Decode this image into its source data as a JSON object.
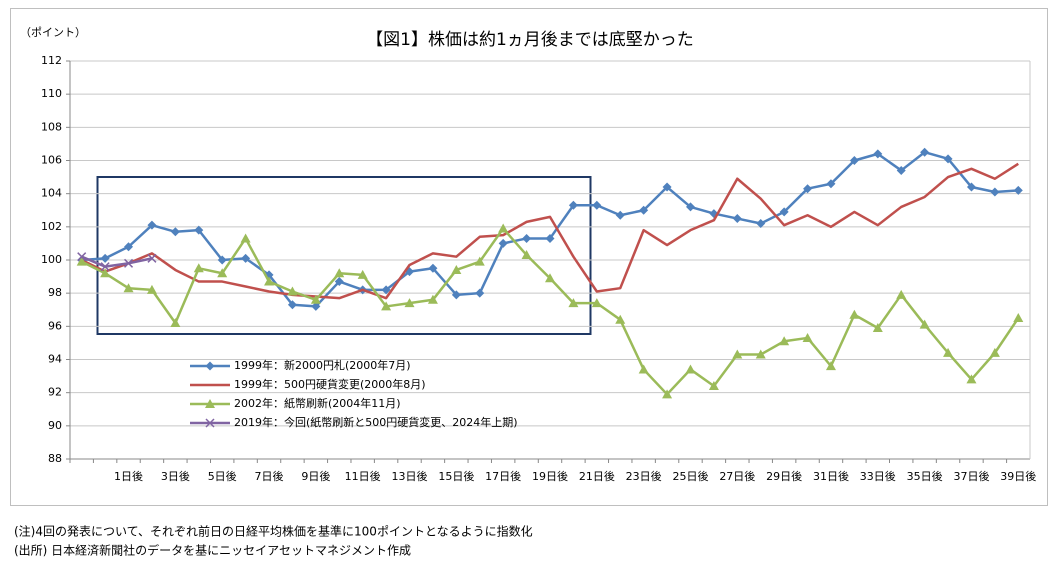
{
  "chart_data": {
    "type": "line",
    "title": "【図1】株価は約1ヵ月後までは底堅かった",
    "y_label": "（ポイント）",
    "categories": [
      null,
      null,
      "1日後",
      null,
      "3日後",
      null,
      "5日後",
      null,
      "7日後",
      null,
      "9日後",
      null,
      "11日後",
      null,
      "13日後",
      null,
      "15日後",
      null,
      "17日後",
      null,
      "19日後",
      null,
      "21日後",
      null,
      "23日後",
      null,
      "25日後",
      null,
      "27日後",
      null,
      "29日後",
      null,
      "31日後",
      null,
      "33日後",
      null,
      "35日後",
      null,
      "37日後",
      null,
      "39日後"
    ],
    "series": [
      {
        "name": "1999年：新2000円札(2000年7月)",
        "color": "#4f81bd",
        "marker": "diamond",
        "values": [
          100.0,
          100.1,
          100.8,
          102.1,
          101.7,
          101.8,
          100.0,
          100.1,
          99.1,
          97.3,
          97.2,
          98.7,
          98.2,
          98.2,
          99.3,
          99.5,
          97.9,
          98.0,
          101.0,
          101.3,
          101.3,
          103.3,
          103.3,
          102.7,
          103.0,
          104.4,
          103.2,
          102.8,
          102.5,
          102.2,
          102.9,
          104.3,
          104.6,
          106.0,
          106.4,
          105.4,
          106.5,
          106.1,
          104.4,
          104.1,
          104.2
        ]
      },
      {
        "name": "1999年：500円硬貨変更(2000年8月)",
        "color": "#c0504d",
        "marker": "none",
        "values": [
          100.0,
          99.3,
          99.8,
          100.4,
          99.4,
          98.7,
          98.7,
          98.4,
          98.1,
          97.9,
          97.8,
          97.7,
          98.2,
          97.7,
          99.7,
          100.4,
          100.2,
          101.4,
          101.5,
          102.3,
          102.6,
          100.2,
          98.1,
          98.3,
          101.8,
          100.9,
          101.8,
          102.4,
          104.9,
          103.7,
          102.1,
          102.7,
          102.0,
          102.9,
          102.1,
          103.2,
          103.8,
          105.0,
          105.5,
          104.9,
          105.8
        ]
      },
      {
        "name": "2002年：紙幣刷新(2004年11月)",
        "color": "#9bbb59",
        "marker": "triangle",
        "values": [
          99.9,
          99.2,
          98.3,
          98.2,
          96.2,
          99.5,
          99.2,
          101.3,
          98.7,
          98.1,
          97.6,
          99.2,
          99.1,
          97.2,
          97.4,
          97.6,
          99.4,
          99.9,
          101.9,
          100.3,
          98.9,
          97.4,
          97.4,
          96.4,
          93.4,
          91.9,
          93.4,
          92.4,
          94.3,
          94.3,
          95.1,
          95.3,
          93.6,
          96.7,
          95.9,
          97.9,
          96.1,
          94.4,
          92.8,
          94.4,
          96.5
        ]
      },
      {
        "name": "2019年：今回(紙幣刷新と500円硬貨変更、2024年上期)",
        "color": "#8064a2",
        "marker": "x",
        "values": [
          100.2,
          99.6,
          99.8,
          100.1,
          null,
          null,
          null,
          null,
          null,
          null,
          null,
          null,
          null,
          null,
          null,
          null,
          null,
          null,
          null,
          null,
          null,
          null,
          null,
          null,
          null,
          null,
          null,
          null,
          null,
          null,
          null,
          null,
          null,
          null,
          null,
          null,
          null,
          null,
          null,
          null,
          null
        ]
      }
    ],
    "ylim": [
      88,
      112
    ],
    "yticks": [
      88,
      90,
      92,
      94,
      96,
      98,
      100,
      102,
      104,
      106,
      108,
      110,
      112
    ],
    "grid": true,
    "legend": "left",
    "notes": [
      "(注)4回の発表について、それぞれ前日の日経平均株価を基準に100ポイントとなるように指数化",
      "(出所) 日本経済新聞社のデータを基にニッセイアセットマネジメント作成"
    ]
  }
}
